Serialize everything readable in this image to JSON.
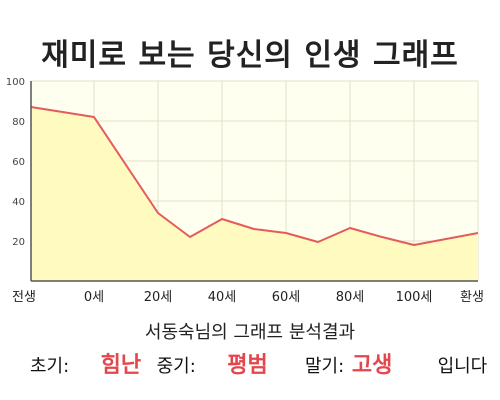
{
  "title": "재미로 보는 당신의 인생 그래프",
  "summary": {
    "text": "서동숙님의 그래프 분석결과"
  },
  "result": {
    "early_label": "초기:",
    "early_value": "힘난",
    "middle_label": "중기:",
    "middle_value": "평범",
    "late_label": "말기:",
    "late_value": "고생",
    "suffix": "입니다"
  },
  "colors": {
    "line": "#e35b5b",
    "area": "#fffac0",
    "plot_bg": "#fffff0",
    "grid": "#e6e2c8",
    "accent": "#e3474d"
  },
  "chart_data": {
    "type": "area",
    "title": "재미로 보는 당신의 인생 그래프",
    "xlabel": "",
    "ylabel": "",
    "x_ticks": [
      "전생",
      "0세",
      "20세",
      "40세",
      "60세",
      "80세",
      "100세",
      "환생"
    ],
    "y_ticks": [
      20,
      40,
      60,
      80,
      100
    ],
    "ylim": [
      0,
      100
    ],
    "grid": true,
    "series": [
      {
        "points": [
          {
            "x": "전생",
            "y": 87
          },
          {
            "x": "0세",
            "y": 82
          },
          {
            "x": "20세",
            "y": 34
          },
          {
            "x": "30세",
            "y": 22
          },
          {
            "x": "40세",
            "y": 31
          },
          {
            "x": "50세",
            "y": 26
          },
          {
            "x": "60세",
            "y": 24
          },
          {
            "x": "70세",
            "y": 19.5
          },
          {
            "x": "80세",
            "y": 26.5
          },
          {
            "x": "90세",
            "y": 22
          },
          {
            "x": "100세",
            "y": 18
          },
          {
            "x": "환생",
            "y": 24
          }
        ]
      }
    ]
  }
}
